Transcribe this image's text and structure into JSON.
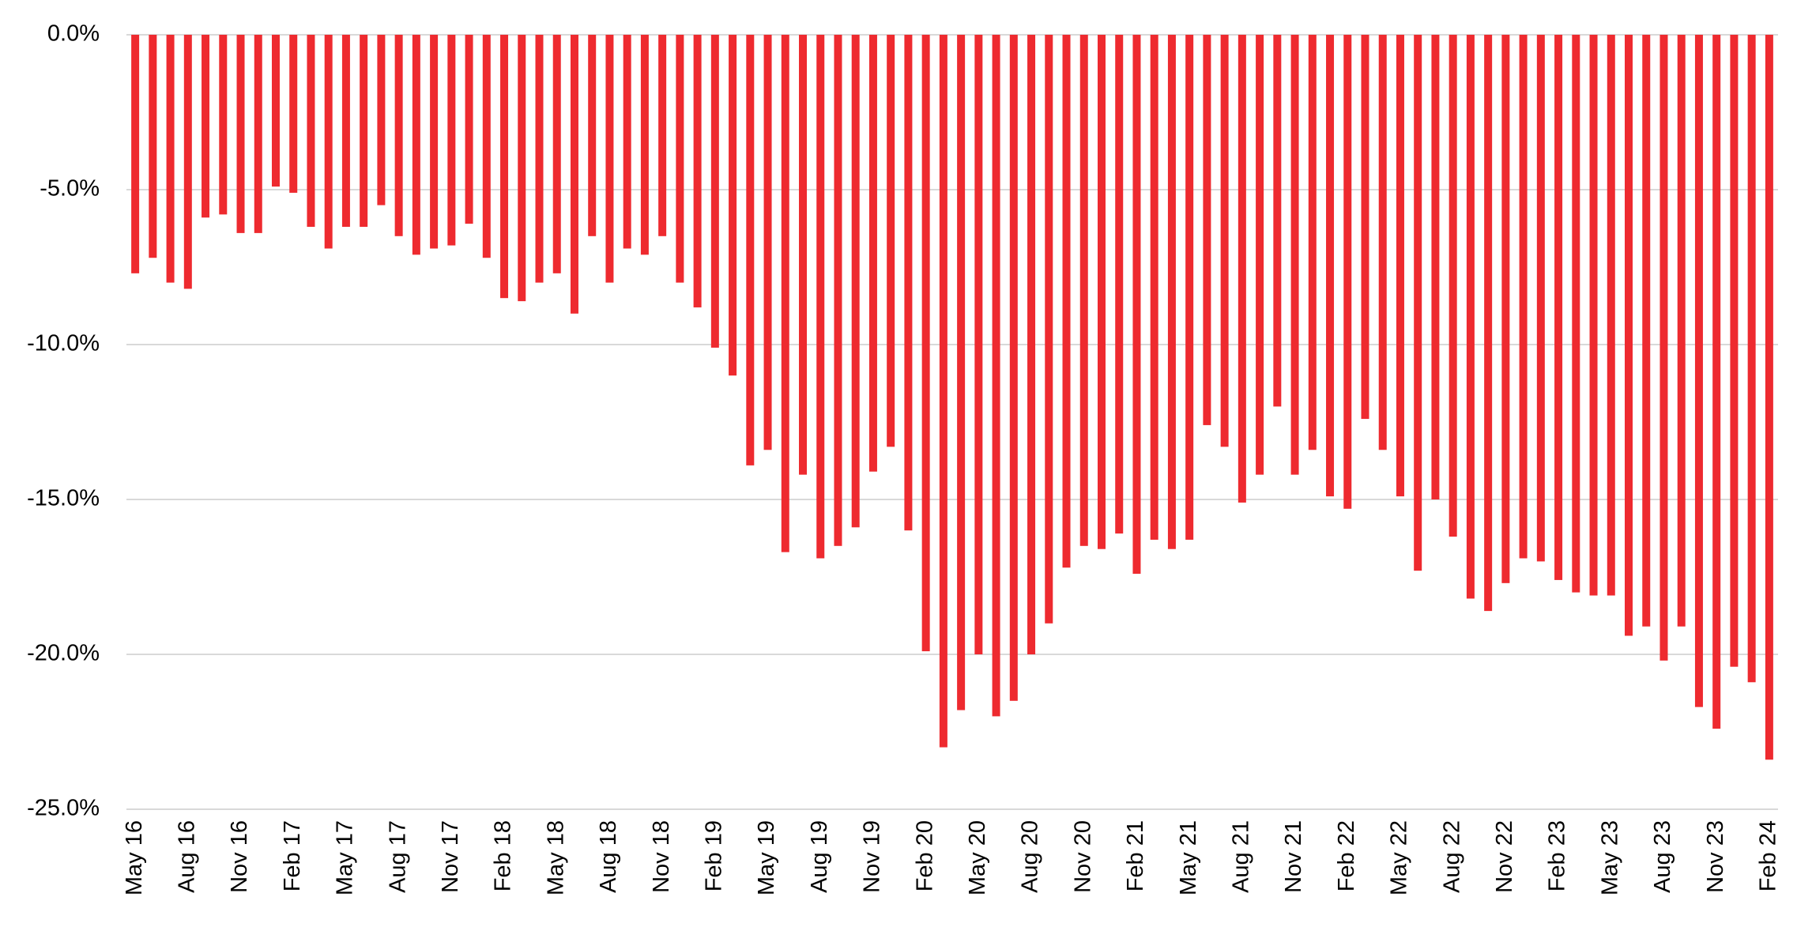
{
  "chart_data": {
    "type": "bar",
    "categories": [
      "May 16",
      null,
      null,
      "Aug 16",
      null,
      null,
      "Nov 16",
      null,
      null,
      "Feb 17",
      null,
      null,
      "May 17",
      null,
      null,
      "Aug 17",
      null,
      null,
      "Nov 17",
      null,
      null,
      "Feb 18",
      null,
      null,
      "May 18",
      null,
      null,
      "Aug 18",
      null,
      null,
      "Nov 18",
      null,
      null,
      "Feb 19",
      null,
      null,
      "May 19",
      null,
      null,
      "Aug 19",
      null,
      null,
      "Nov 19",
      null,
      null,
      "Feb 20",
      null,
      null,
      "May 20",
      null,
      null,
      "Aug 20",
      null,
      null,
      "Nov 20",
      null,
      null,
      "Feb 21",
      null,
      null,
      "May 21",
      null,
      null,
      "Aug 21",
      null,
      null,
      "Nov 21",
      null,
      null,
      "Feb 22",
      null,
      null,
      "May 22",
      null,
      null,
      "Aug 22",
      null,
      null,
      "Nov 22",
      null,
      null,
      "Feb 23",
      null,
      null,
      "May 23",
      null,
      null,
      "Aug 23",
      null,
      null,
      "Nov 23",
      null,
      null,
      "Feb 24"
    ],
    "values": [
      -7.7,
      -7.2,
      -8.0,
      -8.2,
      -5.9,
      -5.8,
      -6.4,
      -6.4,
      -4.9,
      -5.1,
      -6.2,
      -6.9,
      -6.2,
      -6.2,
      -5.5,
      -6.5,
      -7.1,
      -6.9,
      -6.8,
      -6.1,
      -7.2,
      -8.5,
      -8.6,
      -8.0,
      -7.7,
      -9.0,
      -6.5,
      -8.0,
      -6.9,
      -7.1,
      -6.5,
      -8.0,
      -8.8,
      -10.1,
      -11.0,
      -13.9,
      -13.4,
      -16.7,
      -14.2,
      -16.9,
      -16.5,
      -15.9,
      -14.1,
      -13.3,
      -16.0,
      -19.9,
      -23.0,
      -21.8,
      -20.0,
      -22.0,
      -21.5,
      -20.0,
      -19.0,
      -17.2,
      -16.5,
      -16.6,
      -16.1,
      -17.4,
      -16.3,
      -16.6,
      -16.3,
      -12.6,
      -13.3,
      -15.1,
      -14.2,
      -12.0,
      -14.2,
      -13.4,
      -14.9,
      -15.3,
      -12.4,
      -13.4,
      -14.9,
      -17.3,
      -15.0,
      -16.2,
      -18.2,
      -18.6,
      -17.7,
      -16.9,
      -17.0,
      -17.6,
      -18.0,
      -18.1,
      -18.1,
      -19.4,
      -19.1,
      -20.2,
      -19.1,
      -21.7,
      -22.4,
      -20.4,
      -20.9,
      -23.4
    ],
    "color": "#ee2a2f",
    "ylim": [
      -25,
      0
    ],
    "yticks": [
      {
        "value": 0,
        "label": "0.0%"
      },
      {
        "value": -5,
        "label": "-5.0%"
      },
      {
        "value": -10,
        "label": "-10.0%"
      },
      {
        "value": -15,
        "label": "-15.0%"
      },
      {
        "value": -20,
        "label": "-20.0%"
      },
      {
        "value": -25,
        "label": "-25.0%"
      }
    ],
    "grid": true
  }
}
